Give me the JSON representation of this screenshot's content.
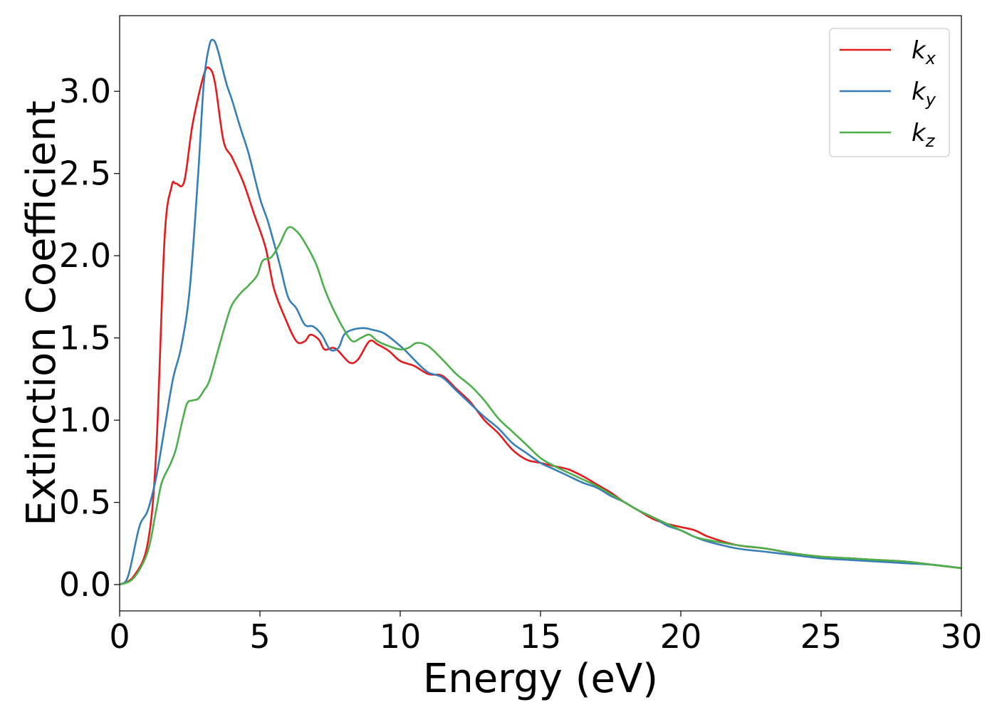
{
  "chart_data": {
    "type": "line",
    "title": "",
    "xlabel": "Energy (eV)",
    "ylabel": "Extinction Coefficient",
    "xlim": [
      0,
      30
    ],
    "ylim": [
      -0.16,
      3.46
    ],
    "xticks": [
      0,
      5,
      10,
      15,
      20,
      25,
      30
    ],
    "xtick_labels": [
      "0",
      "5",
      "10",
      "15",
      "20",
      "25",
      "30"
    ],
    "yticks": [
      0.0,
      0.5,
      1.0,
      1.5,
      2.0,
      2.5,
      3.0
    ],
    "ytick_labels": [
      "0.0",
      "0.5",
      "1.0",
      "1.5",
      "2.0",
      "2.5",
      "3.0"
    ],
    "grid": false,
    "legend_position": "top-right",
    "series": [
      {
        "name": "k",
        "name_sub": "x",
        "color": "#e41a1c",
        "points": [
          [
            0,
            0
          ],
          [
            0.5,
            0.05
          ],
          [
            1.0,
            0.25
          ],
          [
            1.3,
            0.8
          ],
          [
            1.6,
            2.1
          ],
          [
            1.85,
            2.42
          ],
          [
            2.0,
            2.44
          ],
          [
            2.3,
            2.45
          ],
          [
            2.6,
            2.8
          ],
          [
            3.0,
            3.1
          ],
          [
            3.2,
            3.14
          ],
          [
            3.4,
            3.05
          ],
          [
            3.7,
            2.7
          ],
          [
            4.0,
            2.6
          ],
          [
            4.4,
            2.45
          ],
          [
            4.8,
            2.25
          ],
          [
            5.2,
            2.05
          ],
          [
            5.5,
            1.8
          ],
          [
            5.9,
            1.62
          ],
          [
            6.3,
            1.48
          ],
          [
            6.6,
            1.48
          ],
          [
            6.8,
            1.52
          ],
          [
            7.1,
            1.49
          ],
          [
            7.3,
            1.43
          ],
          [
            7.6,
            1.44
          ],
          [
            7.8,
            1.42
          ],
          [
            8.2,
            1.35
          ],
          [
            8.5,
            1.37
          ],
          [
            8.9,
            1.48
          ],
          [
            9.2,
            1.46
          ],
          [
            9.6,
            1.42
          ],
          [
            10.0,
            1.36
          ],
          [
            10.5,
            1.33
          ],
          [
            11.0,
            1.28
          ],
          [
            11.5,
            1.27
          ],
          [
            12.0,
            1.19
          ],
          [
            12.5,
            1.11
          ],
          [
            13.0,
            1.0
          ],
          [
            13.5,
            0.92
          ],
          [
            14.0,
            0.82
          ],
          [
            14.5,
            0.76
          ],
          [
            15.0,
            0.74
          ],
          [
            15.5,
            0.72
          ],
          [
            16.0,
            0.7
          ],
          [
            16.5,
            0.66
          ],
          [
            17.0,
            0.61
          ],
          [
            17.5,
            0.56
          ],
          [
            18.0,
            0.5
          ],
          [
            18.5,
            0.45
          ],
          [
            19.0,
            0.4
          ],
          [
            19.5,
            0.37
          ],
          [
            20.0,
            0.35
          ],
          [
            20.5,
            0.33
          ],
          [
            21.0,
            0.29
          ],
          [
            22.0,
            0.24
          ],
          [
            23.0,
            0.22
          ],
          [
            24.0,
            0.19
          ],
          [
            25.0,
            0.17
          ],
          [
            26.0,
            0.16
          ],
          [
            27.0,
            0.15
          ],
          [
            28.0,
            0.14
          ],
          [
            29.0,
            0.12
          ],
          [
            30.0,
            0.1
          ]
        ]
      },
      {
        "name": "k",
        "name_sub": "y",
        "color": "#377eb8",
        "points": [
          [
            0,
            0
          ],
          [
            0.3,
            0.05
          ],
          [
            0.7,
            0.35
          ],
          [
            1.0,
            0.45
          ],
          [
            1.3,
            0.65
          ],
          [
            1.6,
            0.95
          ],
          [
            1.9,
            1.25
          ],
          [
            2.2,
            1.45
          ],
          [
            2.5,
            1.8
          ],
          [
            2.8,
            2.5
          ],
          [
            3.0,
            3.05
          ],
          [
            3.2,
            3.28
          ],
          [
            3.35,
            3.31
          ],
          [
            3.5,
            3.25
          ],
          [
            3.8,
            3.05
          ],
          [
            4.0,
            2.95
          ],
          [
            4.3,
            2.78
          ],
          [
            4.6,
            2.62
          ],
          [
            5.0,
            2.35
          ],
          [
            5.3,
            2.2
          ],
          [
            5.7,
            1.95
          ],
          [
            6.0,
            1.75
          ],
          [
            6.3,
            1.68
          ],
          [
            6.6,
            1.58
          ],
          [
            6.9,
            1.57
          ],
          [
            7.2,
            1.52
          ],
          [
            7.5,
            1.43
          ],
          [
            7.8,
            1.44
          ],
          [
            8.0,
            1.52
          ],
          [
            8.3,
            1.55
          ],
          [
            8.7,
            1.56
          ],
          [
            9.0,
            1.55
          ],
          [
            9.4,
            1.53
          ],
          [
            9.8,
            1.48
          ],
          [
            10.2,
            1.42
          ],
          [
            10.6,
            1.35
          ],
          [
            11.0,
            1.29
          ],
          [
            11.5,
            1.26
          ],
          [
            12.0,
            1.18
          ],
          [
            12.5,
            1.1
          ],
          [
            13.0,
            1.02
          ],
          [
            13.5,
            0.95
          ],
          [
            14.0,
            0.86
          ],
          [
            14.5,
            0.8
          ],
          [
            15.0,
            0.74
          ],
          [
            15.5,
            0.7
          ],
          [
            16.0,
            0.66
          ],
          [
            16.5,
            0.62
          ],
          [
            17.0,
            0.59
          ],
          [
            17.5,
            0.54
          ],
          [
            18.0,
            0.5
          ],
          [
            18.5,
            0.45
          ],
          [
            19.0,
            0.41
          ],
          [
            19.5,
            0.36
          ],
          [
            20.0,
            0.33
          ],
          [
            20.5,
            0.29
          ],
          [
            21.0,
            0.26
          ],
          [
            22.0,
            0.22
          ],
          [
            23.0,
            0.2
          ],
          [
            24.0,
            0.18
          ],
          [
            25.0,
            0.16
          ],
          [
            26.0,
            0.15
          ],
          [
            27.0,
            0.14
          ],
          [
            28.0,
            0.13
          ],
          [
            29.0,
            0.12
          ],
          [
            30.0,
            0.1
          ]
        ]
      },
      {
        "name": "k",
        "name_sub": "z",
        "color": "#4daf4a",
        "points": [
          [
            0,
            0
          ],
          [
            0.5,
            0.04
          ],
          [
            1.0,
            0.2
          ],
          [
            1.3,
            0.45
          ],
          [
            1.5,
            0.62
          ],
          [
            1.8,
            0.73
          ],
          [
            2.0,
            0.82
          ],
          [
            2.2,
            0.97
          ],
          [
            2.4,
            1.1
          ],
          [
            2.6,
            1.12
          ],
          [
            2.8,
            1.13
          ],
          [
            3.0,
            1.18
          ],
          [
            3.2,
            1.24
          ],
          [
            3.5,
            1.42
          ],
          [
            3.8,
            1.6
          ],
          [
            4.0,
            1.7
          ],
          [
            4.3,
            1.77
          ],
          [
            4.6,
            1.82
          ],
          [
            4.9,
            1.88
          ],
          [
            5.1,
            1.97
          ],
          [
            5.4,
            1.99
          ],
          [
            5.7,
            2.07
          ],
          [
            6.0,
            2.17
          ],
          [
            6.3,
            2.15
          ],
          [
            6.6,
            2.08
          ],
          [
            7.0,
            1.95
          ],
          [
            7.3,
            1.8
          ],
          [
            7.6,
            1.68
          ],
          [
            8.0,
            1.55
          ],
          [
            8.3,
            1.48
          ],
          [
            8.6,
            1.5
          ],
          [
            8.9,
            1.52
          ],
          [
            9.2,
            1.48
          ],
          [
            9.6,
            1.45
          ],
          [
            10.0,
            1.43
          ],
          [
            10.3,
            1.44
          ],
          [
            10.6,
            1.47
          ],
          [
            11.0,
            1.45
          ],
          [
            11.5,
            1.37
          ],
          [
            12.0,
            1.28
          ],
          [
            12.5,
            1.21
          ],
          [
            13.0,
            1.12
          ],
          [
            13.5,
            1.01
          ],
          [
            14.0,
            0.93
          ],
          [
            14.5,
            0.85
          ],
          [
            15.0,
            0.77
          ],
          [
            15.5,
            0.72
          ],
          [
            16.0,
            0.68
          ],
          [
            16.5,
            0.64
          ],
          [
            17.0,
            0.6
          ],
          [
            17.5,
            0.55
          ],
          [
            18.0,
            0.5
          ],
          [
            18.5,
            0.45
          ],
          [
            19.0,
            0.41
          ],
          [
            19.5,
            0.37
          ],
          [
            20.0,
            0.33
          ],
          [
            20.5,
            0.29
          ],
          [
            21.0,
            0.27
          ],
          [
            22.0,
            0.24
          ],
          [
            23.0,
            0.22
          ],
          [
            24.0,
            0.19
          ],
          [
            25.0,
            0.17
          ],
          [
            26.0,
            0.16
          ],
          [
            27.0,
            0.15
          ],
          [
            28.0,
            0.14
          ],
          [
            29.0,
            0.12
          ],
          [
            30.0,
            0.1
          ]
        ]
      }
    ]
  }
}
